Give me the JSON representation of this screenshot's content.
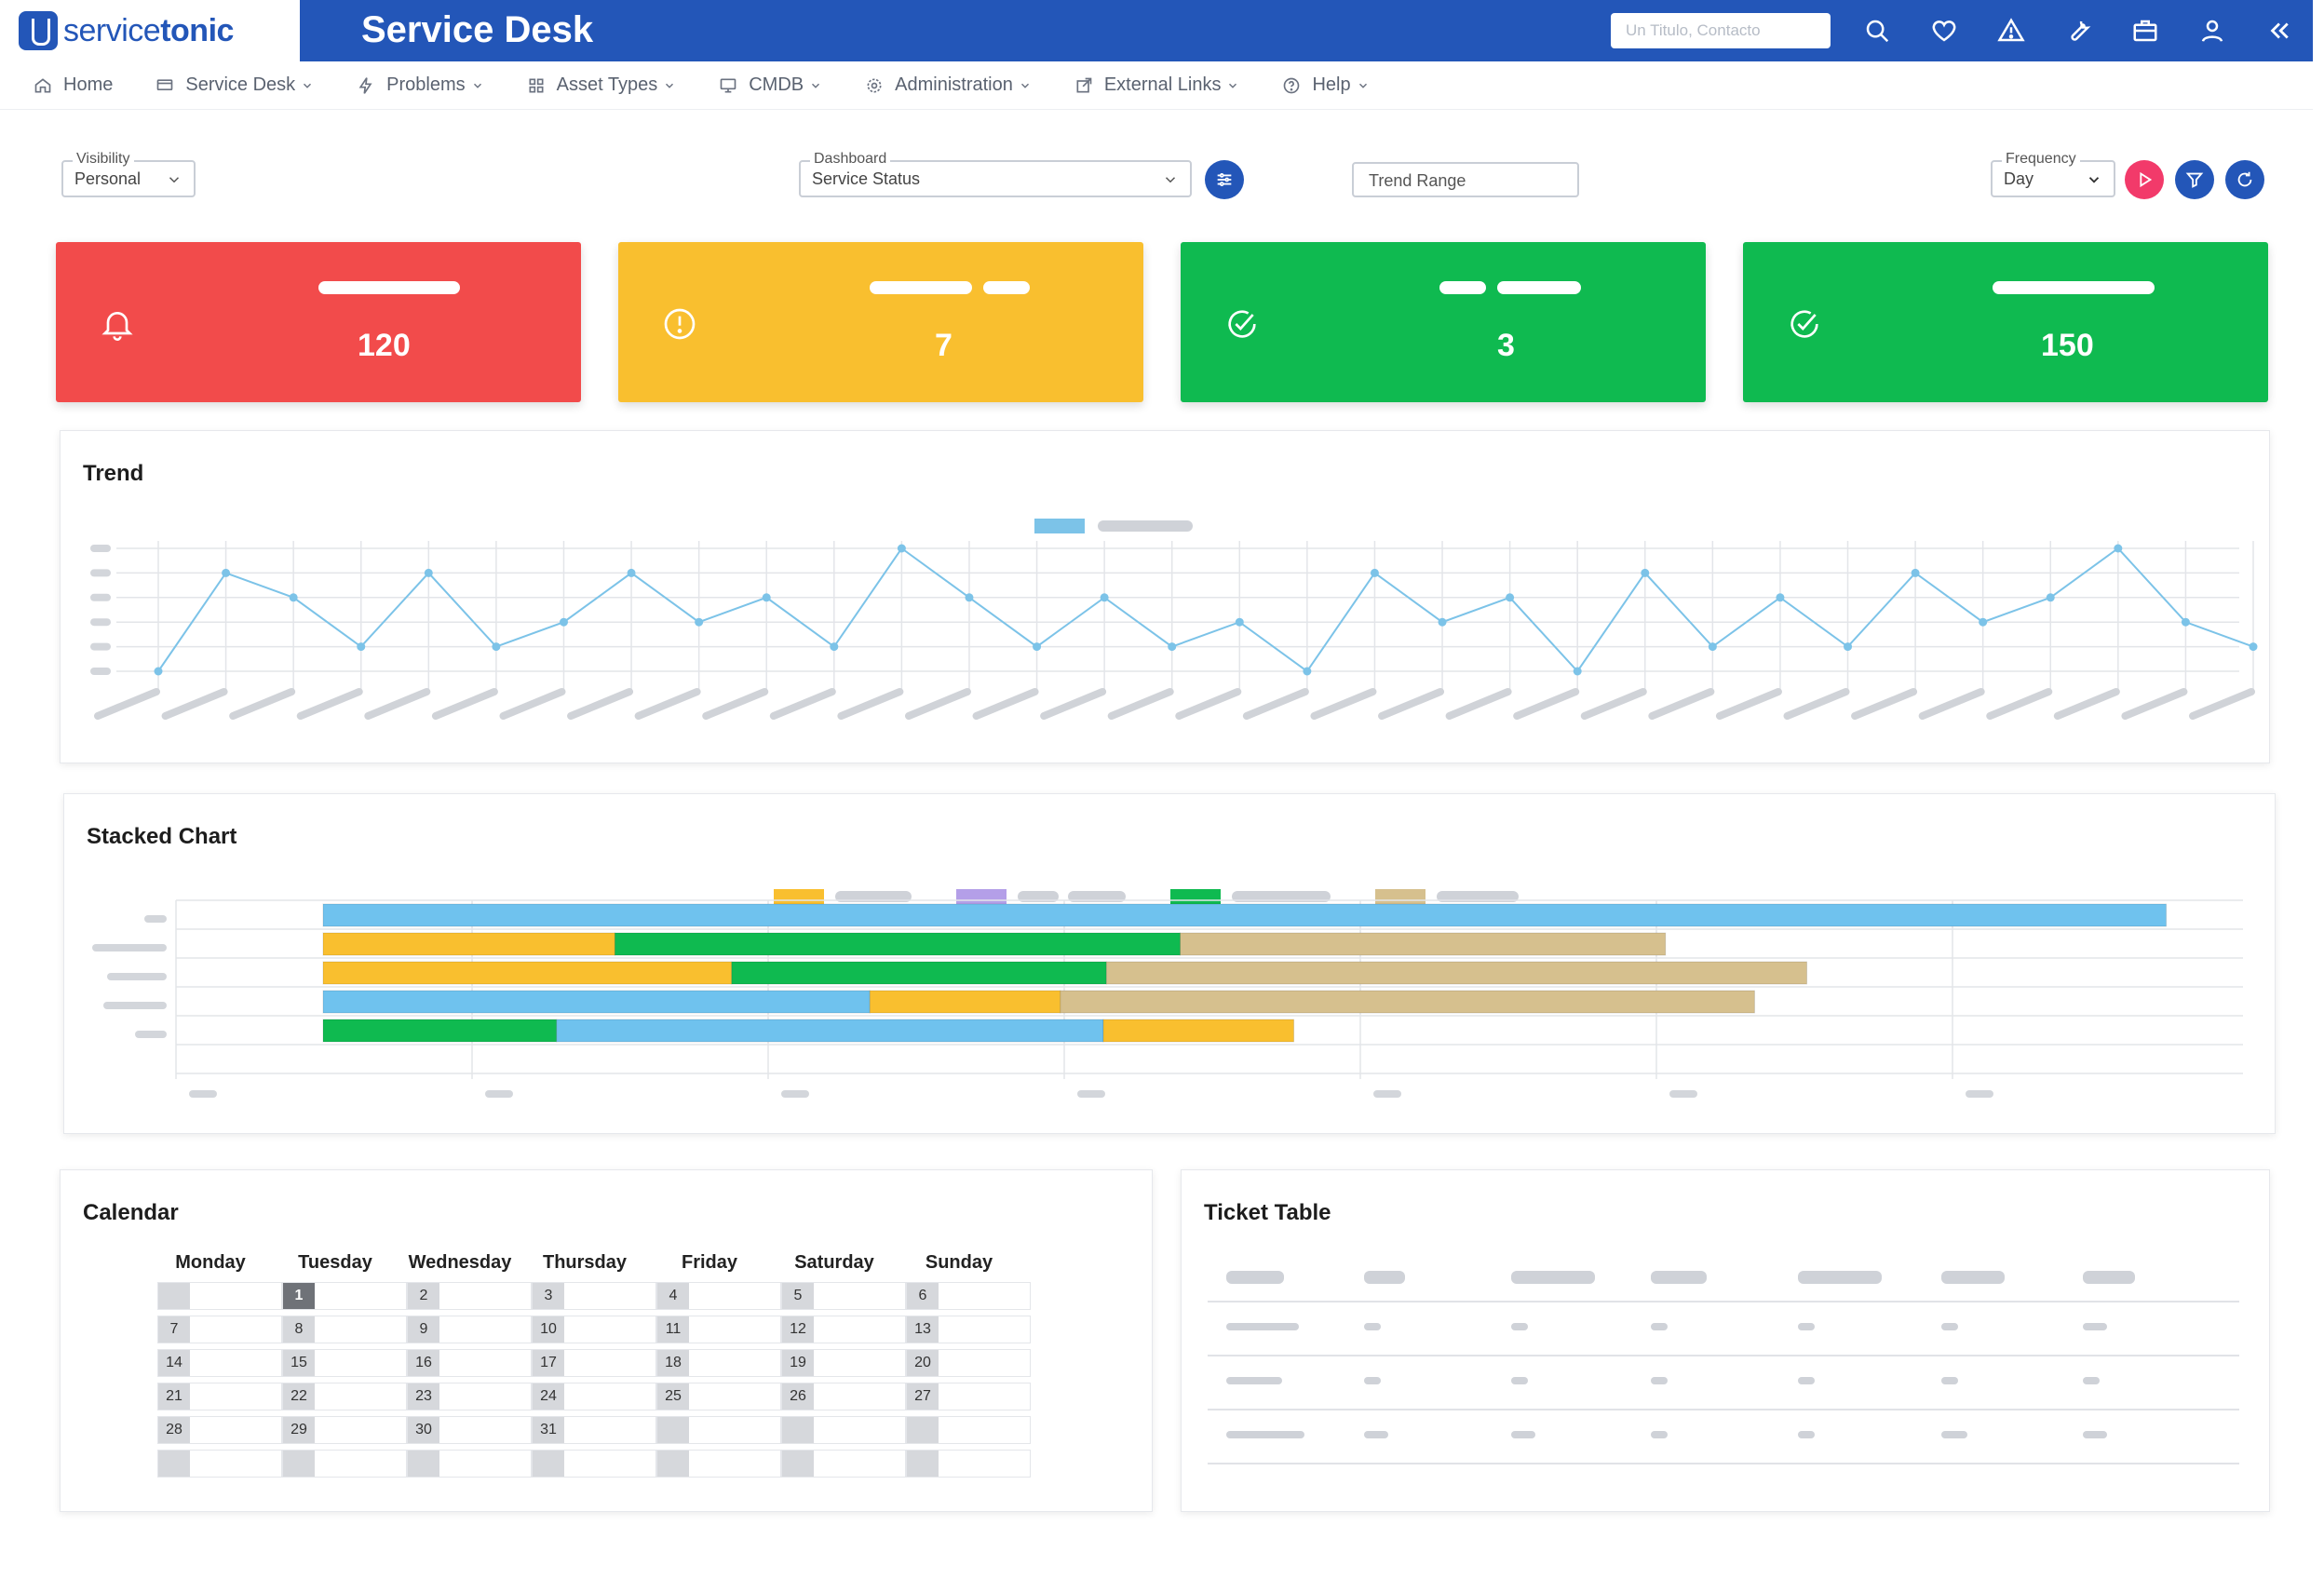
{
  "header": {
    "logo_prefix": "service",
    "logo_suffix": "tonic",
    "title": "Service Desk",
    "search_placeholder": "Un Titulo, Contacto",
    "icons": [
      "search-icon",
      "heart-icon",
      "warning-icon",
      "wrench-icon",
      "briefcase-icon",
      "user-icon",
      "collapse-icon"
    ]
  },
  "nav": [
    {
      "label": "Home",
      "icon": "home-icon",
      "dropdown": false
    },
    {
      "label": "Service Desk",
      "icon": "desk-icon",
      "dropdown": true
    },
    {
      "label": "Problems",
      "icon": "bolt-icon",
      "dropdown": true
    },
    {
      "label": "Asset Types",
      "icon": "grid-icon",
      "dropdown": true
    },
    {
      "label": "CMDB",
      "icon": "monitor-icon",
      "dropdown": true
    },
    {
      "label": "Administration",
      "icon": "gear-icon",
      "dropdown": true
    },
    {
      "label": "External Links",
      "icon": "external-link-icon",
      "dropdown": true
    },
    {
      "label": "Help",
      "icon": "help-icon",
      "dropdown": true
    }
  ],
  "controls": {
    "visibility": {
      "label": "Visibility",
      "value": "Personal"
    },
    "dashboard": {
      "label": "Dashboard",
      "value": "Service Status"
    },
    "trend_range": "Trend Range",
    "frequency": {
      "label": "Frequency",
      "value": "Day"
    }
  },
  "kpis": [
    {
      "value": "120",
      "color": "#f24b4b",
      "icon": "bell-icon"
    },
    {
      "value": "7",
      "color": "#f9bf2f",
      "icon": "info-icon"
    },
    {
      "value": "3",
      "color": "#0fba50",
      "icon": "check-circle-icon"
    },
    {
      "value": "150",
      "color": "#0fba50",
      "icon": "check-circle-icon"
    }
  ],
  "trend": {
    "title": "Trend",
    "chart_data": {
      "type": "line",
      "color": "#7cc3e8",
      "values": [
        0,
        4,
        3,
        1,
        4,
        1,
        2,
        4,
        2,
        3,
        1,
        5,
        3,
        1,
        3,
        1,
        2,
        0,
        4,
        2,
        3,
        0,
        4,
        1,
        3,
        1,
        4,
        2,
        3,
        5,
        2,
        1
      ],
      "ylim": [
        0,
        5
      ],
      "grid": true,
      "legend": "top-center"
    }
  },
  "stacked": {
    "title": "Stacked Chart",
    "chart_data": {
      "type": "bar",
      "orientation": "horizontal",
      "stacked": true,
      "legend": "top-center",
      "legend_colors": [
        "#f9bf2f",
        "#b49fe8",
        "#0fba50",
        "#d6c08e"
      ],
      "rows": [
        [
          {
            "color": "#6fc2ee",
            "value": 60
          }
        ],
        [
          {
            "color": "#f9bf2f",
            "value": 9.5
          },
          {
            "color": "#0fba50",
            "value": 18.4
          },
          {
            "color": "#d6c08e",
            "value": 15.8
          }
        ],
        [
          {
            "color": "#f9bf2f",
            "value": 13.3
          },
          {
            "color": "#0fba50",
            "value": 12.2
          },
          {
            "color": "#d6c08e",
            "value": 22.8
          }
        ],
        [
          {
            "color": "#6fc2ee",
            "value": 17.8
          },
          {
            "color": "#f9bf2f",
            "value": 6.2
          },
          {
            "color": "#d6c08e",
            "value": 22.6
          }
        ],
        [
          {
            "color": "#0fba50",
            "value": 7.6
          },
          {
            "color": "#6fc2ee",
            "value": 17.8
          },
          {
            "color": "#f9bf2f",
            "value": 6.2
          }
        ]
      ],
      "xlim": [
        0,
        60
      ]
    }
  },
  "calendar": {
    "title": "Calendar",
    "weekdays": [
      "Monday",
      "Tuesday",
      "Wednesday",
      "Thursday",
      "Friday",
      "Saturday",
      "Sunday"
    ],
    "weeks": [
      [
        "",
        "1",
        "2",
        "3",
        "4",
        "5",
        "6"
      ],
      [
        "7",
        "8",
        "9",
        "10",
        "11",
        "12",
        "13"
      ],
      [
        "14",
        "15",
        "16",
        "17",
        "18",
        "19",
        "20"
      ],
      [
        "21",
        "22",
        "23",
        "24",
        "25",
        "26",
        "27"
      ],
      [
        "28",
        "29",
        "30",
        "31",
        "",
        "",
        ""
      ],
      [
        "",
        "",
        "",
        "",
        "",
        "",
        ""
      ]
    ],
    "today": "1"
  },
  "ticket_table": {
    "title": "Ticket Table",
    "columns": 7,
    "rows": 3
  }
}
